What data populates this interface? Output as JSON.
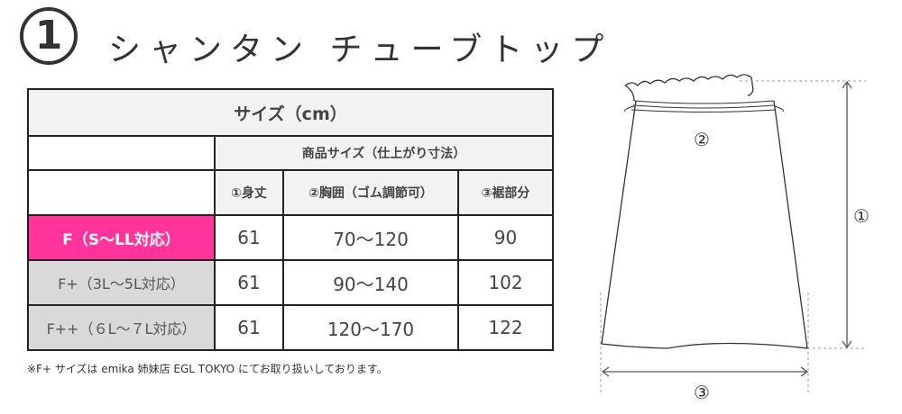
{
  "title": {
    "number": "1",
    "text": "シャンタン チューブトップ"
  },
  "table": {
    "caption": "サイズ（cm）",
    "group_header": "商品サイズ（仕上がり寸法）",
    "columns": [
      "①身丈",
      "②胸囲（ゴム調節可）",
      "③裾部分"
    ],
    "rows": [
      {
        "label": "F（S～LL対応）",
        "values": [
          "61",
          "70～120",
          "90"
        ],
        "highlight": true
      },
      {
        "label": "F+（3L～5L対応）",
        "values": [
          "61",
          "90～140",
          "102"
        ]
      },
      {
        "label": "F++（６L～７L対応）",
        "values": [
          "61",
          "120～170",
          "122"
        ]
      }
    ]
  },
  "note": "※F+ サイズは emika 姉妹店 EGL TOKYO にてお取り扱いしております。",
  "diagram": {
    "label_length": "①",
    "label_chest": "②",
    "label_hem": "③"
  },
  "colors": {
    "highlight": "#ff3399",
    "header": "#f2f2f2",
    "row_label": "#d9d9d9"
  }
}
